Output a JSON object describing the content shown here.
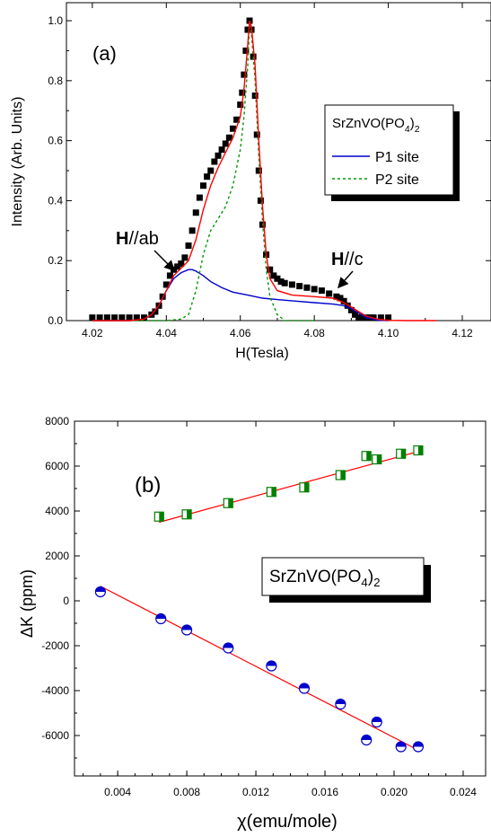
{
  "figure": {
    "panels": [
      "(a)",
      "(b)"
    ]
  },
  "chart_data": [
    {
      "type": "scatter",
      "panel_label": "(a)",
      "xlabel": "H(Tesla)",
      "ylabel": "Intensity (Arb. Units)",
      "xlim": [
        4.013,
        4.128
      ],
      "ylim": [
        0.0,
        1.06
      ],
      "xticks": [
        "4.02",
        "4.04",
        "4.06",
        "4.08",
        "4.10",
        "4.12"
      ],
      "yticks": [
        "0.0",
        "0.2",
        "0.4",
        "0.6",
        "0.8",
        "1.0"
      ],
      "legend": {
        "title": "SrZnVO(PO",
        "title_sub": "4",
        "title_tail": ")",
        "title_sub2": "2",
        "placement": "center-right",
        "entries": [
          "P1 site",
          "P2 site"
        ]
      },
      "annotations": [
        {
          "bold": "H",
          "text": "//ab",
          "x": 4.035,
          "y": 0.245
        },
        {
          "bold": "H",
          "text": "//c",
          "x": 4.086,
          "y": 0.185
        }
      ],
      "colors": {
        "data": "#000000",
        "fit": "#ff0000",
        "p1": "#0000cc",
        "p2": "#009900"
      },
      "series": [
        {
          "role": "data-points",
          "x": [
            4.02,
            4.022,
            4.024,
            4.026,
            4.028,
            4.03,
            4.032,
            4.034,
            4.036,
            4.037,
            4.038,
            4.039,
            4.04,
            4.041,
            4.042,
            4.043,
            4.044,
            4.045,
            4.046,
            4.047,
            4.048,
            4.049,
            4.05,
            4.051,
            4.052,
            4.053,
            4.054,
            4.055,
            4.056,
            4.057,
            4.058,
            4.059,
            4.06,
            4.0605,
            4.061,
            4.0615,
            4.062,
            4.0625,
            4.063,
            4.0635,
            4.064,
            4.0645,
            4.065,
            4.0655,
            4.066,
            4.067,
            4.068,
            4.069,
            4.07,
            4.071,
            4.072,
            4.074,
            4.076,
            4.078,
            4.08,
            4.082,
            4.084,
            4.086,
            4.087,
            4.088,
            4.089,
            4.09,
            4.091,
            4.092,
            4.093,
            4.094,
            4.095,
            4.096,
            4.098,
            4.1
          ],
          "y": [
            0.01,
            0.01,
            0.01,
            0.01,
            0.01,
            0.01,
            0.01,
            0.01,
            0.02,
            0.03,
            0.05,
            0.08,
            0.12,
            0.15,
            0.17,
            0.18,
            0.19,
            0.21,
            0.25,
            0.3,
            0.36,
            0.41,
            0.45,
            0.48,
            0.5,
            0.53,
            0.55,
            0.57,
            0.59,
            0.61,
            0.64,
            0.67,
            0.72,
            0.76,
            0.82,
            0.9,
            0.97,
            1.0,
            0.97,
            0.88,
            0.75,
            0.62,
            0.5,
            0.4,
            0.32,
            0.22,
            0.17,
            0.15,
            0.14,
            0.13,
            0.125,
            0.12,
            0.115,
            0.11,
            0.105,
            0.1,
            0.09,
            0.08,
            0.075,
            0.065,
            0.05,
            0.035,
            0.02,
            0.01,
            0.01,
            0.01,
            0.01,
            0.01,
            0.01,
            0.01
          ]
        },
        {
          "role": "total-fit",
          "x": [
            4.02,
            4.03,
            4.034,
            4.036,
            4.038,
            4.04,
            4.042,
            4.044,
            4.046,
            4.048,
            4.05,
            4.052,
            4.054,
            4.056,
            4.058,
            4.06,
            4.061,
            4.062,
            4.0625,
            4.063,
            4.064,
            4.065,
            4.066,
            4.067,
            4.068,
            4.07,
            4.074,
            4.08,
            4.085,
            4.088,
            4.09,
            4.092,
            4.094,
            4.097,
            4.1,
            4.105,
            4.113
          ],
          "y": [
            0.0,
            0.0,
            0.005,
            0.02,
            0.05,
            0.1,
            0.15,
            0.175,
            0.2,
            0.27,
            0.37,
            0.45,
            0.51,
            0.56,
            0.61,
            0.68,
            0.77,
            0.92,
            1.0,
            0.98,
            0.85,
            0.6,
            0.38,
            0.22,
            0.14,
            0.1,
            0.085,
            0.08,
            0.075,
            0.06,
            0.045,
            0.03,
            0.015,
            0.005,
            0.001,
            0.0,
            0.0
          ]
        },
        {
          "name": "P1 site",
          "role": "component",
          "x": [
            4.02,
            4.03,
            4.034,
            4.036,
            4.038,
            4.04,
            4.042,
            4.044,
            4.046,
            4.047,
            4.048,
            4.05,
            4.052,
            4.055,
            4.058,
            4.062,
            4.066,
            4.07,
            4.075,
            4.08,
            4.085,
            4.088,
            4.09,
            4.092,
            4.094,
            4.097,
            4.1
          ],
          "y": [
            0.0,
            0.0,
            0.005,
            0.02,
            0.05,
            0.1,
            0.14,
            0.16,
            0.17,
            0.17,
            0.165,
            0.15,
            0.13,
            0.11,
            0.095,
            0.085,
            0.075,
            0.07,
            0.065,
            0.06,
            0.055,
            0.05,
            0.04,
            0.025,
            0.01,
            0.002,
            0.0
          ]
        },
        {
          "name": "P2 site",
          "role": "component",
          "x": [
            4.02,
            4.04,
            4.044,
            4.046,
            4.048,
            4.05,
            4.052,
            4.054,
            4.056,
            4.058,
            4.06,
            4.061,
            4.062,
            4.0625,
            4.063,
            4.064,
            4.065,
            4.066,
            4.067,
            4.068,
            4.07,
            4.072,
            4.08
          ],
          "y": [
            0.0,
            0.0,
            0.005,
            0.02,
            0.1,
            0.22,
            0.3,
            0.34,
            0.38,
            0.45,
            0.57,
            0.68,
            0.85,
            0.99,
            0.96,
            0.8,
            0.55,
            0.33,
            0.17,
            0.08,
            0.02,
            0.0,
            0.0
          ]
        }
      ]
    },
    {
      "type": "scatter",
      "panel_label": "(b)",
      "xlabel": "χ(emu/mole)",
      "ylabel": "ΔK (ppm)",
      "xlim": [
        0.0015,
        0.0253
      ],
      "ylim": [
        -7800,
        8000
      ],
      "xticks": [
        "0.004",
        "0.008",
        "0.012",
        "0.016",
        "0.020",
        "0.024"
      ],
      "yticks": [
        "-6000",
        "-4000",
        "-2000",
        "0",
        "2000",
        "4000",
        "6000",
        "8000"
      ],
      "legend": {
        "title": "SrZnVO(PO",
        "title_sub": "4",
        "title_tail": ")",
        "title_sub2": "2",
        "placement": "center-right"
      },
      "colors": {
        "upper": "#008000",
        "lower": "#0000cc",
        "fit": "#ff0000"
      },
      "series": [
        {
          "role": "upper-squares",
          "x": [
            0.0064,
            0.008,
            0.0104,
            0.0129,
            0.0148,
            0.0169,
            0.0184,
            0.019,
            0.0204,
            0.0214
          ],
          "y": [
            3750,
            3850,
            4350,
            4850,
            5050,
            5600,
            6450,
            6300,
            6550,
            6700
          ]
        },
        {
          "role": "lower-circles",
          "x": [
            0.003,
            0.0065,
            0.008,
            0.0104,
            0.0129,
            0.0148,
            0.0169,
            0.0184,
            0.019,
            0.0204,
            0.0214
          ],
          "y": [
            400,
            -800,
            -1300,
            -2100,
            -2900,
            -3900,
            -4600,
            -6200,
            -5400,
            -6500,
            -6500
          ]
        },
        {
          "role": "fit-upper",
          "x": [
            0.0064,
            0.0214
          ],
          "y": [
            3500,
            6650
          ]
        },
        {
          "role": "fit-lower",
          "x": [
            0.003,
            0.0214
          ],
          "y": [
            650,
            -6650
          ]
        }
      ]
    }
  ]
}
